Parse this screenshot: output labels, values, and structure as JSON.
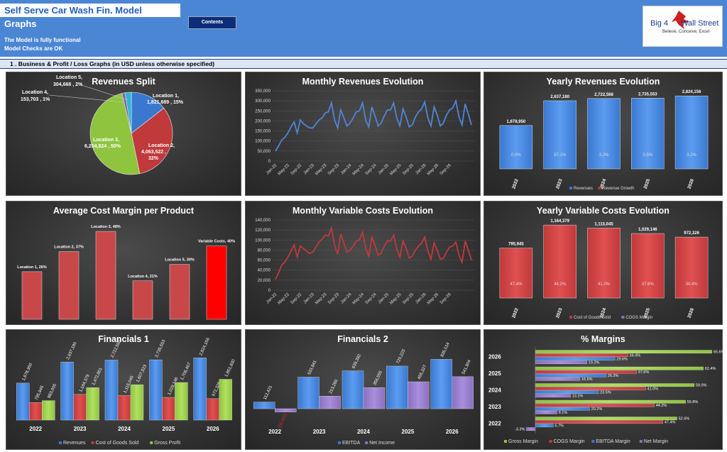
{
  "header": {
    "title": "Self Serve Car Wash Fin. Model",
    "subtitle": "Graphs",
    "note1": "The Model is fully functional",
    "note2": "Model Checks are OK",
    "contents_button": "Contents",
    "logo_line1": "Big 4",
    "logo_line2": "Wall Street",
    "logo_tagline": "Believe, Conceive, Excel"
  },
  "section": {
    "label": "1 .  Business & Profit / Loss Graphs (in USD unless otherwise specified)"
  },
  "colors": {
    "blue": "#3a78d0",
    "red": "#c0393b",
    "green": "#8fc43f",
    "purple": "#8a6fc0",
    "line_blue": "#4f86d6",
    "line_red": "#c0393b",
    "bright_red": "#ff0000"
  },
  "chart_data": [
    {
      "id": "revenues_split",
      "type": "pie",
      "title": "Revenues Split",
      "slices": [
        {
          "label": "Location 1",
          "value": 1821689,
          "pct": "15%",
          "color": "#3a78d0"
        },
        {
          "label": "Location 2",
          "value": 4063522,
          "pct": "32%",
          "color": "#c0393b"
        },
        {
          "label": "Location 3",
          "value": 6254824,
          "pct": "50%",
          "color": "#8fc43f"
        },
        {
          "label": "Location 4",
          "value": 153703,
          "pct": "1%",
          "color": "#7a5fb3"
        },
        {
          "label": "Location 5",
          "value": 304668,
          "pct": "2%",
          "color": "#2fb6cf"
        }
      ],
      "data_labels": {
        "l1": "Location 1,",
        "l1b": "1,821,689 , 15%",
        "l2": "Location 2,",
        "l2b": "4,063,522 ,",
        "l2c": "32%",
        "l3": "Location 3,",
        "l3b": "6,254,824 , 50%",
        "l4": "Location 4,",
        "l4b": "153,703 , 1%",
        "l5": "Location 5,",
        "l5b": "304,668 , 2%"
      }
    },
    {
      "id": "monthly_revenues",
      "type": "line",
      "title": "Monthly Revenues Evolution",
      "x_ticks": [
        "Jan-22",
        "May-22",
        "Sep-22",
        "Jan-23",
        "May-23",
        "Sep-23",
        "Jan-24",
        "May-24",
        "Sep-24",
        "Jan-25",
        "May-25",
        "Sep-25",
        "Jan-26",
        "May-26",
        "Sep-26"
      ],
      "y_ticks": [
        "0",
        "50,000",
        "100,000",
        "150,000",
        "200,000",
        "250,000",
        "300,000",
        "350,000"
      ],
      "ylim": [
        0,
        350000
      ],
      "values": [
        50000,
        75000,
        105000,
        118000,
        140000,
        170000,
        195000,
        140000,
        205000,
        185000,
        175000,
        165000,
        165000,
        185000,
        205000,
        215000,
        240000,
        245000,
        290000,
        205000,
        165000,
        255000,
        215000,
        175000,
        190000,
        215000,
        245000,
        250000,
        290000,
        205000,
        170000,
        270000,
        225000,
        175000,
        190000,
        225000,
        255000,
        255000,
        290000,
        215000,
        175000,
        260000,
        220000,
        170000,
        180000,
        220000,
        245000,
        260000,
        295000,
        215000,
        175000,
        270000,
        230000,
        175000,
        190000,
        230000,
        255000,
        265000,
        300000,
        220000,
        180000,
        285000,
        235000,
        180000
      ]
    },
    {
      "id": "yearly_revenues",
      "type": "bar",
      "title": "Yearly Revenues Evolution",
      "categories": [
        "2022",
        "2023",
        "2024",
        "2025",
        "2026"
      ],
      "values": [
        1678950,
        2637180,
        2722568,
        2735553,
        2824156
      ],
      "value_labels": [
        "1,678,950",
        "2,637,180",
        "2,722,568",
        "2,735,553",
        "2,824,156"
      ],
      "growth_labels": [
        "0.0%",
        "57.1%",
        "3.2%",
        "0.5%",
        "3.2%"
      ],
      "legend": [
        "Revenues",
        "Revenue Growth"
      ]
    },
    {
      "id": "avg_cost_margin",
      "type": "bar",
      "title": "Average Cost Margin per Product",
      "categories": [
        "Location 1",
        "Location 2",
        "Location 3",
        "Location 4",
        "Location 5",
        "Variable Costs"
      ],
      "values": [
        0.26,
        0.37,
        0.48,
        0.21,
        0.3,
        0.4
      ],
      "labels": [
        "Location 1, 26%",
        "Location 2, 37%",
        "Location 3, 48%",
        "Location 4, 21%",
        "Location 5, 30%",
        "Variable Costs, 40%"
      ]
    },
    {
      "id": "monthly_var_costs",
      "type": "line",
      "title": "Monthly Variable Costs Evolution",
      "x_ticks": [
        "Jan-22",
        "May-22",
        "Sep-22",
        "Jan-23",
        "May-23",
        "Sep-23",
        "Jan-24",
        "May-24",
        "Sep-24",
        "Jan-25",
        "May-25",
        "Sep-25",
        "Jan-26",
        "May-26",
        "Sep-26"
      ],
      "y_ticks": [
        "0",
        "20,000",
        "40,000",
        "60,000",
        "80,000",
        "100,000",
        "120,000",
        "140,000"
      ],
      "ylim": [
        0,
        140000
      ],
      "values": [
        22000,
        35000,
        50000,
        56000,
        66000,
        78000,
        90000,
        66000,
        88000,
        83000,
        78000,
        73000,
        76000,
        86000,
        96000,
        102000,
        110000,
        108000,
        124000,
        90000,
        72000,
        112000,
        94000,
        76000,
        80000,
        88000,
        98000,
        100000,
        116000,
        84000,
        68000,
        106000,
        90000,
        70000,
        74000,
        88000,
        98000,
        98000,
        110000,
        82000,
        66000,
        98000,
        84000,
        64000,
        68000,
        80000,
        88000,
        94000,
        106000,
        78000,
        62000,
        94000,
        80000,
        62000,
        64000,
        76000,
        86000,
        88000,
        96000,
        70000,
        56000,
        98000,
        80000,
        60000
      ]
    },
    {
      "id": "yearly_var_costs",
      "type": "bar",
      "title": "Yearly Variable Costs Evolution",
      "categories": [
        "2022",
        "2023",
        "2024",
        "2025",
        "2026"
      ],
      "values": [
        795945,
        1164379,
        1115045,
        1029146,
        972326
      ],
      "value_labels": [
        "795,945",
        "1,164,379",
        "1,115,045",
        "1,029,146",
        "972,326"
      ],
      "margin_labels": [
        "47.4%",
        "44.2%",
        "41.0%",
        "37.6%",
        "34.4%"
      ],
      "legend": [
        "Cost of Goods Sold",
        "COGS Margin"
      ]
    },
    {
      "id": "financials1",
      "type": "bar",
      "title": "Financials 1",
      "categories": [
        "2022",
        "2023",
        "2024",
        "2025",
        "2026"
      ],
      "series": [
        {
          "name": "Revenues",
          "values": [
            1678950,
            2637180,
            2722568,
            2735553,
            2824156
          ],
          "labels": [
            "1,678,950",
            "2,637,180",
            "2,722,568",
            "2,735,553",
            "2,824,156"
          ]
        },
        {
          "name": "Cost of Goods Sold",
          "values": [
            795945,
            1164379,
            1115045,
            1029146,
            972326
          ],
          "labels": [
            "795,945",
            "1,164,379",
            "1,115,045",
            "1,029,146",
            "972,326"
          ]
        },
        {
          "name": "Gross Profit",
          "values": [
            883005,
            1472801,
            1607523,
            1706407,
            1851830
          ],
          "labels": [
            "883,005",
            "1,472,801",
            "1,607,523",
            "1,706,407",
            "1,851,830"
          ]
        }
      ]
    },
    {
      "id": "financials2",
      "type": "bar",
      "title": "Financials 2",
      "categories": [
        "2022",
        "2023",
        "2024",
        "2025",
        "2026"
      ],
      "series": [
        {
          "name": "EBITDA",
          "values": [
            112421,
            533841,
            639392,
            720223,
            835014
          ],
          "labels": [
            "112,421",
            "533,841",
            "639,392",
            "720,223",
            "835,014"
          ]
        },
        {
          "name": "Net Income",
          "values": [
            -55000,
            213260,
            356555,
            455327,
            541904
          ],
          "labels": [
            "(55,000)",
            "213,260",
            "356,555",
            "455,327",
            "541,904"
          ]
        }
      ]
    },
    {
      "id": "margins",
      "type": "bar",
      "orientation": "horizontal",
      "title": "% Margins",
      "categories": [
        "2022",
        "2023",
        "2024",
        "2025",
        "2026"
      ],
      "series": [
        {
          "name": "Gross Margin",
          "values": [
            52.6,
            55.8,
            59.0,
            62.4,
            65.6
          ],
          "labels": [
            "52.6%",
            "55.8%",
            "59.0%",
            "62.4%",
            "65.6%"
          ]
        },
        {
          "name": "COGS Margin",
          "values": [
            47.4,
            44.2,
            41.0,
            37.6,
            34.4
          ],
          "labels": [
            "47.4%",
            "44.2%",
            "41.0%",
            "37.6%",
            "34.4%"
          ]
        },
        {
          "name": "EBITDA Margin",
          "values": [
            6.7,
            20.2,
            23.5,
            26.3,
            29.6
          ],
          "labels": [
            "6.7%",
            "20.2%",
            "23.5%",
            "26.3%",
            "29.6%"
          ]
        },
        {
          "name": "Net Margin",
          "values": [
            -3.3,
            8.1,
            13.1,
            16.6,
            19.2
          ],
          "labels": [
            "-3.3%",
            "8.1%",
            "13.1%",
            "16.6%",
            "19.2%"
          ]
        }
      ]
    }
  ]
}
